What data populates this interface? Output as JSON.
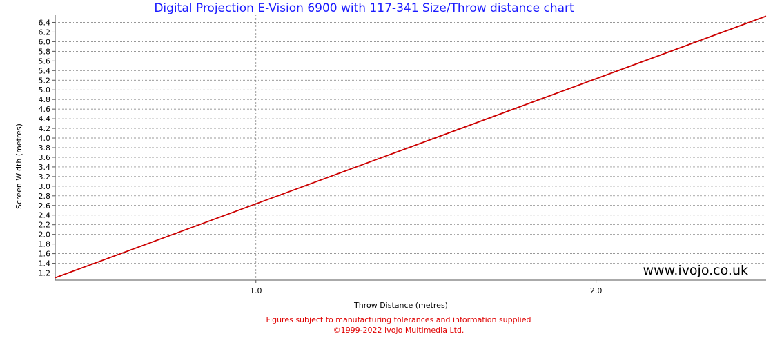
{
  "chart_data": {
    "type": "line",
    "title": "Digital Projection E-Vision 6900 with 117-341 Size/Throw distance chart",
    "xlabel": "Throw Distance (metres)",
    "ylabel": "Screen Width (metres)",
    "xlim": [
      0.41,
      2.5
    ],
    "ylim": [
      1.05,
      6.55
    ],
    "x_ticks": [
      1.0,
      2.0
    ],
    "x_tick_labels": [
      "1.0",
      "2.0"
    ],
    "y_ticks": [
      1.2,
      1.4,
      1.6,
      1.8,
      2.0,
      2.2,
      2.4,
      2.6,
      2.8,
      3.0,
      3.2,
      3.4,
      3.6,
      3.8,
      4.0,
      4.2,
      4.4,
      4.6,
      4.8,
      5.0,
      5.2,
      5.4,
      5.6,
      5.8,
      6.0,
      6.2,
      6.4
    ],
    "y_tick_labels": [
      "1.2",
      "1.4",
      "1.6",
      "1.8",
      "2.0",
      "2.2",
      "2.4",
      "2.6",
      "2.8",
      "3.0",
      "3.2",
      "3.4",
      "3.6",
      "3.8",
      "4.0",
      "4.2",
      "4.4",
      "4.6",
      "4.8",
      "5.0",
      "5.2",
      "5.4",
      "5.6",
      "5.8",
      "6.0",
      "6.2",
      "6.4"
    ],
    "grid": true,
    "series": [
      {
        "x": [
          0.41,
          2.5
        ],
        "y": [
          1.1,
          6.53
        ],
        "color": "#cc0000"
      }
    ]
  },
  "watermark": "www.ivojo.co.uk",
  "footer": {
    "line1": "Figures subject to manufacturing tolerances and information supplied",
    "line2": "©1999-2022 Ivojo Multimedia Ltd."
  }
}
